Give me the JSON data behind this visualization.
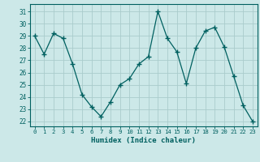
{
  "x": [
    0,
    1,
    2,
    3,
    4,
    5,
    6,
    7,
    8,
    9,
    10,
    11,
    12,
    13,
    14,
    15,
    16,
    17,
    18,
    19,
    20,
    21,
    22,
    23
  ],
  "y": [
    29,
    27.5,
    29.2,
    28.8,
    26.7,
    24.2,
    23.2,
    22.4,
    23.6,
    25.0,
    25.5,
    26.7,
    27.3,
    31.0,
    28.8,
    27.7,
    25.1,
    28.0,
    29.4,
    29.7,
    28.1,
    25.7,
    23.3,
    22.0
  ],
  "bg_color": "#cce8e8",
  "grid_color": "#aacccc",
  "line_color": "#006060",
  "marker_color": "#006060",
  "xlabel": "Humidex (Indice chaleur)",
  "yticks": [
    22,
    23,
    24,
    25,
    26,
    27,
    28,
    29,
    30,
    31
  ],
  "xlim": [
    -0.5,
    23.5
  ],
  "ylim": [
    21.6,
    31.6
  ]
}
